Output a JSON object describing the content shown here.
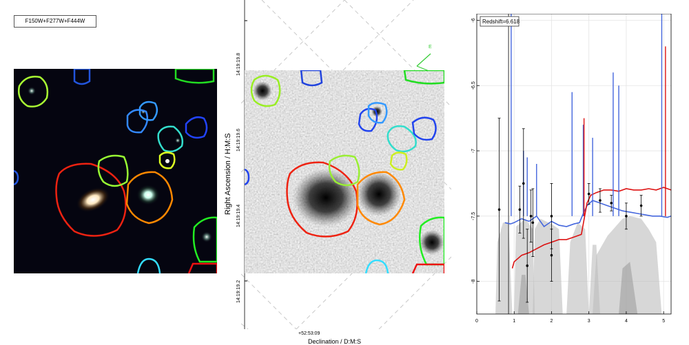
{
  "left_panel": {
    "legend": "F150W+F277W+F444W",
    "apertures": [
      {
        "color": "#aaff33"
      },
      {
        "color": "#2255dd"
      },
      {
        "color": "#22dd22"
      },
      {
        "color": "#3388ff"
      },
      {
        "color": "#3399ff"
      },
      {
        "color": "#33ddcc"
      },
      {
        "color": "#2244ff"
      },
      {
        "color": "#ddff22"
      },
      {
        "color": "#ee2211"
      },
      {
        "color": "#99ff33"
      },
      {
        "color": "#ff8800"
      },
      {
        "color": "#22ee22"
      },
      {
        "color": "#33ddff"
      },
      {
        "color": "#ee1111"
      }
    ]
  },
  "middle_panel": {
    "y_axis_title": "Right Ascension / H:M:S",
    "y_ticks": [
      "14:19:19.8",
      "14:19:19.6",
      "14:19:19.4",
      "14:19:19.2"
    ],
    "x_tick": "+52:53:09",
    "x_axis_title": "Declination / D:M:S",
    "compass_label": "E"
  },
  "chart_data": {
    "type": "line",
    "title": "",
    "annotation": "Redshift=6.618",
    "xlabel": "",
    "ylabel": "",
    "xlim": [
      0,
      5.2
    ],
    "ylim": [
      -8.25,
      -5.95
    ],
    "x_ticks": [
      0,
      1,
      2,
      3,
      4,
      5
    ],
    "y_ticks": [
      -6,
      -6.5,
      -7,
      -7.5,
      -8
    ],
    "grid": true,
    "series": [
      {
        "color": "#4466dd",
        "x": [
          0.75,
          0.9,
          1.0,
          1.2,
          1.4,
          1.6,
          1.8,
          2.0,
          2.2,
          2.4,
          2.6,
          2.75,
          2.85,
          2.95,
          3.1,
          3.3,
          3.5,
          3.7,
          3.9,
          4.1,
          4.3,
          4.5,
          4.7,
          4.9,
          5.1,
          5.2
        ],
        "y": [
          -7.55,
          -7.56,
          -7.55,
          -7.52,
          -7.54,
          -7.5,
          -7.58,
          -7.54,
          -7.57,
          -7.58,
          -7.56,
          -7.55,
          -7.48,
          -7.42,
          -7.38,
          -7.4,
          -7.42,
          -7.44,
          -7.46,
          -7.47,
          -7.48,
          -7.49,
          -7.5,
          -7.5,
          -7.51,
          -7.5
        ]
      },
      {
        "color": "#dd1111",
        "x": [
          0.95,
          1.0,
          1.2,
          1.4,
          1.6,
          1.8,
          2.0,
          2.2,
          2.4,
          2.6,
          2.8,
          2.95,
          3.05,
          3.2,
          3.4,
          3.6,
          3.8,
          4.0,
          4.2,
          4.4,
          4.6,
          4.8,
          5.0,
          5.2
        ],
        "y": [
          -7.9,
          -7.85,
          -7.8,
          -7.78,
          -7.75,
          -7.72,
          -7.7,
          -7.68,
          -7.68,
          -7.66,
          -7.64,
          -7.4,
          -7.34,
          -7.32,
          -7.3,
          -7.3,
          -7.31,
          -7.29,
          -7.3,
          -7.3,
          -7.29,
          -7.3,
          -7.28,
          -7.3
        ]
      }
    ],
    "photometry": {
      "x": [
        0.6,
        1.15,
        1.25,
        1.35,
        1.45,
        1.5,
        2.0,
        2.0,
        3.0,
        3.3,
        3.6,
        4.0,
        4.4
      ],
      "y": [
        -7.45,
        -7.45,
        -7.25,
        -7.88,
        -7.5,
        -7.55,
        -7.8,
        -7.5,
        -7.33,
        -7.38,
        -7.4,
        -7.5,
        -7.42
      ],
      "yerr": [
        0.7,
        0.18,
        0.42,
        0.28,
        0.2,
        0.26,
        0.2,
        0.25,
        0.08,
        0.09,
        0.06,
        0.1,
        0.08
      ]
    }
  }
}
